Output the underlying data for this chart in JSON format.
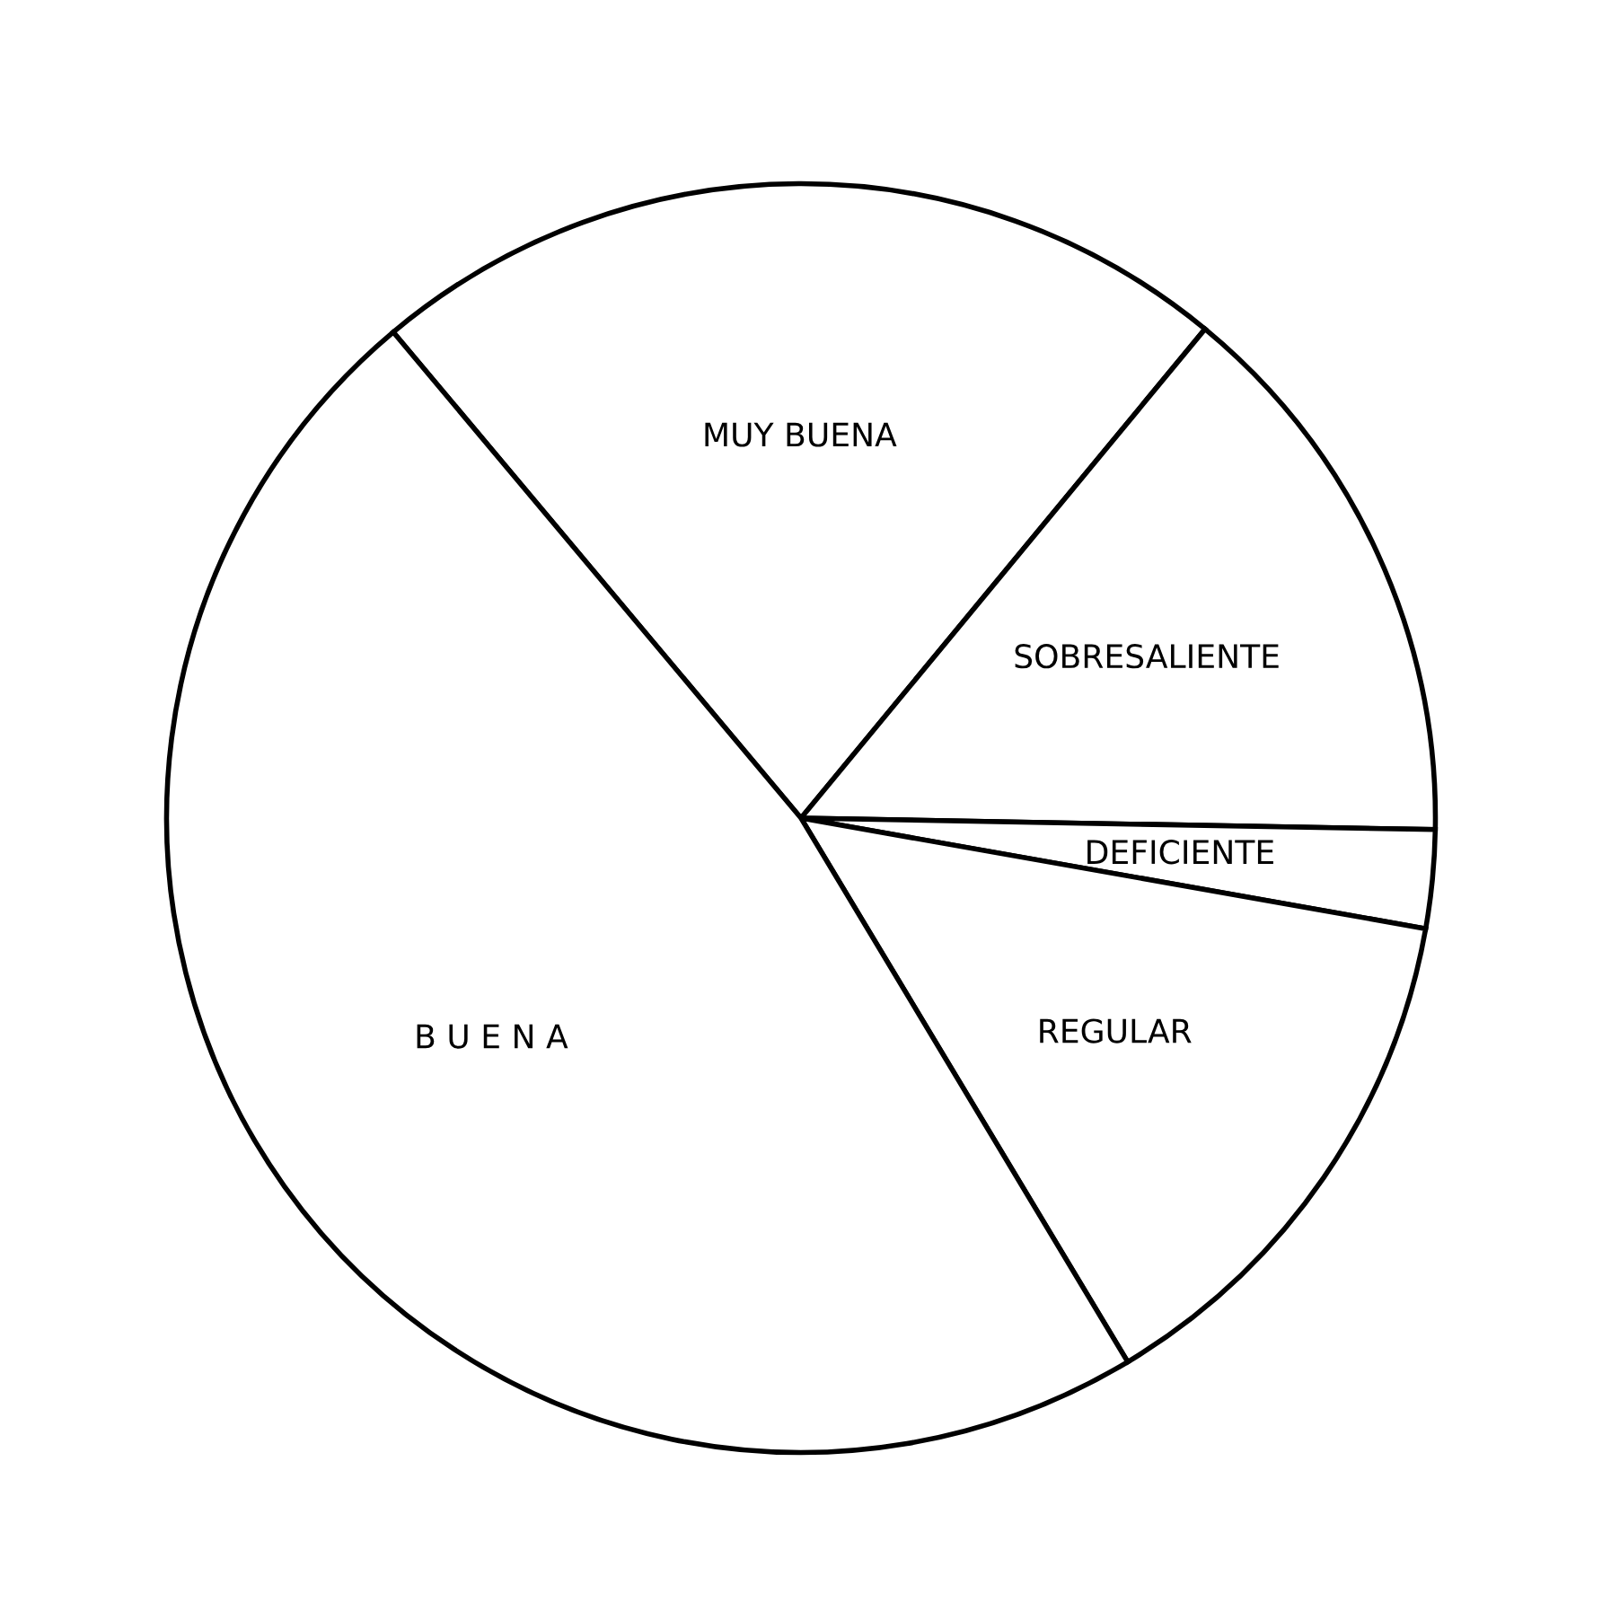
{
  "chart_data": {
    "type": "pie",
    "categories": [
      "MUY BUENA",
      "SOBRESALIENTE",
      "DEFICIENTE",
      "REGULAR",
      "B U E N A"
    ],
    "values": [
      22.1,
      14.3,
      2.5,
      13.6,
      47.5
    ],
    "colors": [
      "#ffffff",
      "#ffffff",
      "#ffffff",
      "#ffffff",
      "#ffffff"
    ]
  }
}
